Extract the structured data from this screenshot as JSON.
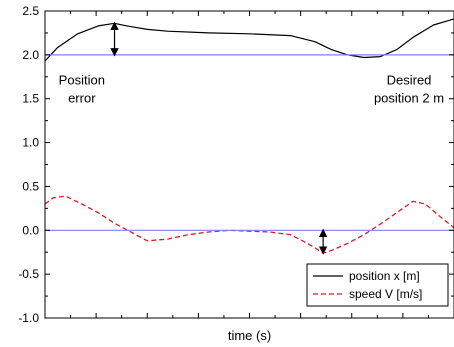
{
  "chart_data": {
    "type": "line",
    "title": "",
    "xlabel": "time (s)",
    "ylabel": "",
    "x_tick_labels_shown": false,
    "ylim": [
      -1.0,
      2.5
    ],
    "yticks": [
      "-1.0",
      "-0.5",
      "0.0",
      "0.5",
      "1.0",
      "1.5",
      "2.0",
      "2.5"
    ],
    "xlim": [
      0,
      100
    ],
    "grid": false,
    "legend_position": "bottom-right",
    "series": [
      {
        "name": "position x [m]",
        "color": "#000000",
        "style": "solid",
        "x": [
          0,
          3,
          8,
          13,
          17,
          20,
          25,
          30,
          40,
          50,
          60,
          66,
          70,
          74,
          78,
          82,
          86,
          90,
          95,
          100
        ],
        "y": [
          1.93,
          2.08,
          2.24,
          2.33,
          2.36,
          2.33,
          2.29,
          2.27,
          2.25,
          2.24,
          2.22,
          2.15,
          2.06,
          2.0,
          1.97,
          1.98,
          2.06,
          2.2,
          2.34,
          2.41
        ]
      },
      {
        "name": "speed V [m/s]",
        "color": "#d81e1e",
        "style": "dashed",
        "x": [
          0,
          2,
          5,
          9,
          13,
          17,
          21,
          25,
          30,
          35,
          40,
          45,
          50,
          55,
          60,
          63,
          66,
          68,
          70,
          74,
          78,
          82,
          86,
          90,
          93,
          96,
          100
        ],
        "y": [
          0.3,
          0.37,
          0.39,
          0.3,
          0.2,
          0.08,
          -0.02,
          -0.12,
          -0.1,
          -0.05,
          -0.02,
          0.0,
          -0.01,
          -0.02,
          -0.05,
          -0.12,
          -0.2,
          -0.26,
          -0.23,
          -0.15,
          -0.05,
          0.07,
          0.2,
          0.33,
          0.3,
          0.18,
          0.03
        ]
      },
      {
        "name": "",
        "color": "#7f7fff",
        "style": "solid",
        "x": [
          0,
          100
        ],
        "y": [
          2.0,
          2.0
        ]
      },
      {
        "name": "",
        "color": "#7f7fff",
        "style": "solid",
        "x": [
          0,
          100
        ],
        "y": [
          0.0,
          0.0
        ]
      }
    ],
    "annotations": [
      {
        "lines": [
          "Position",
          "error"
        ],
        "anchor_x": 9,
        "anchor_y": 1.66,
        "align": "middle"
      },
      {
        "lines": [
          "Desired",
          "position 2 m"
        ],
        "anchor_x": 89,
        "anchor_y": 1.66,
        "align": "middle"
      }
    ],
    "arrows": [
      {
        "x": 17,
        "y_from": 2.0,
        "y_to": 2.36
      },
      {
        "x": 68,
        "y_from": 0.0,
        "y_to": -0.26
      }
    ],
    "legend": [
      {
        "label": "position x [m]",
        "color": "#000000",
        "style": "solid"
      },
      {
        "label": "speed V [m/s]",
        "color": "#d81e1e",
        "style": "dashed"
      }
    ]
  }
}
